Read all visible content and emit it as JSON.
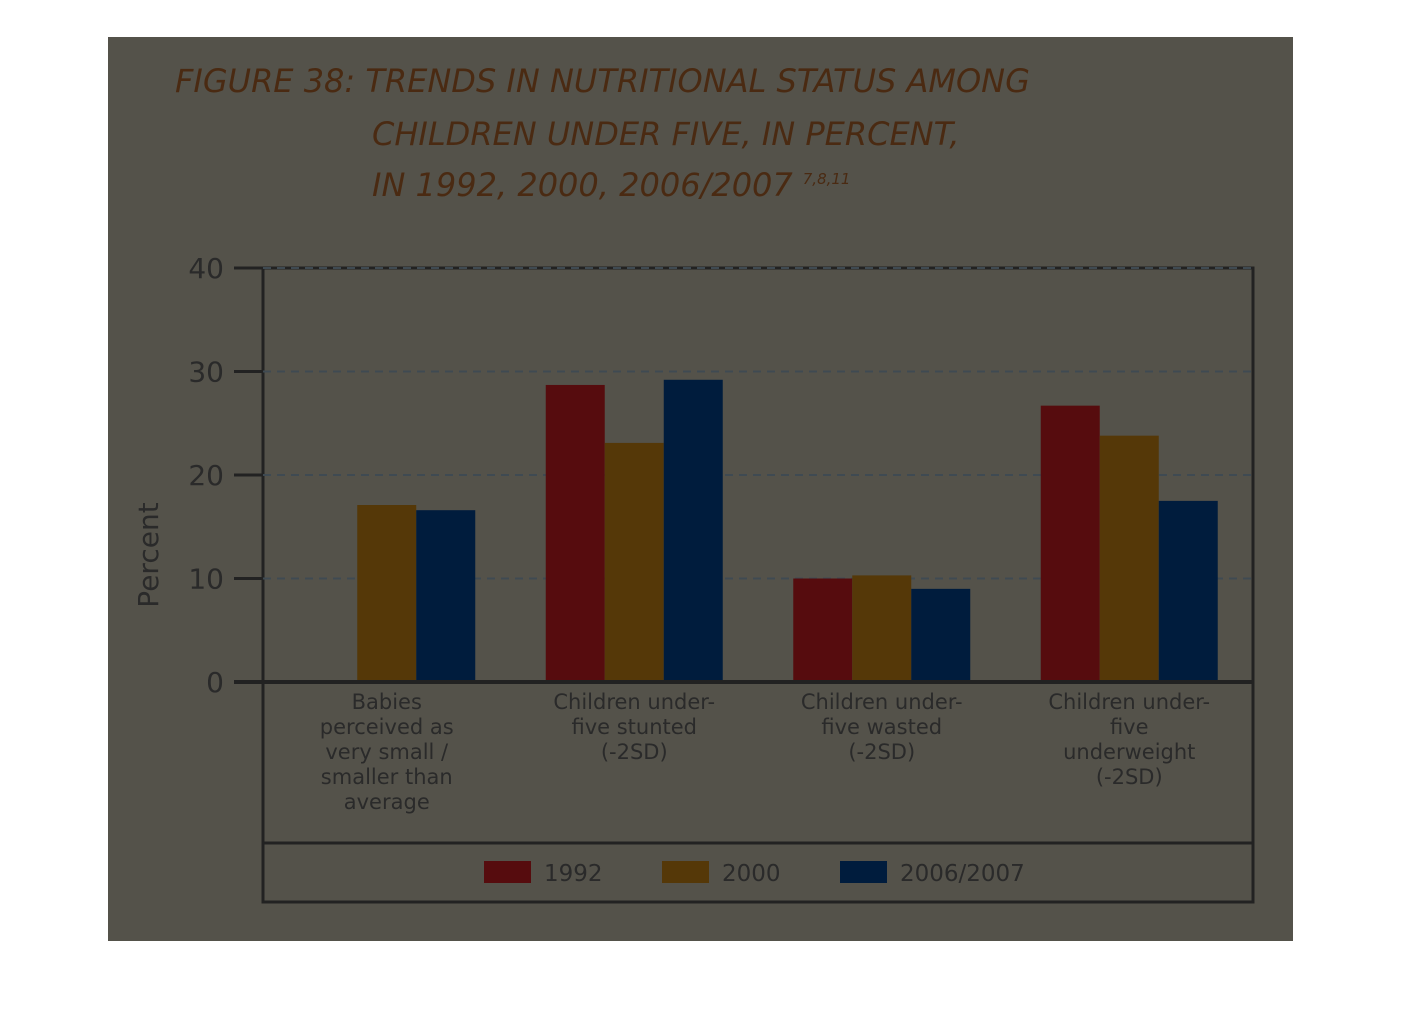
{
  "chart_data": {
    "type": "bar",
    "title": [
      "FIGURE 38: TRENDS IN NUTRITIONAL STATUS AMONG",
      "CHILDREN UNDER FIVE, IN PERCENT,",
      "IN 1992, 2000, 2006/2007"
    ],
    "title_superscript": "7,8,11",
    "y_label": "Percent",
    "categories": [
      "Babies perceived as very small / smaller than average",
      "Children under-five stunted (-2SD)",
      "Children under-five wasted (-2SD)",
      "Children under-five underweight (-2SD)"
    ],
    "series": [
      {
        "name": "1992",
        "color": "#560c0e",
        "values": [
          null,
          28.7,
          10.0,
          26.7
        ]
      },
      {
        "name": "2000",
        "color": "#553808",
        "values": [
          17.1,
          23.1,
          10.3,
          23.8
        ]
      },
      {
        "name": "2006/2007",
        "color": "#001c3d",
        "values": [
          16.6,
          29.2,
          9.0,
          17.5
        ]
      }
    ],
    "ylim": [
      0,
      40
    ],
    "yticks": [
      0,
      10,
      20,
      30,
      40
    ],
    "grid": true,
    "legend": "bottom"
  }
}
